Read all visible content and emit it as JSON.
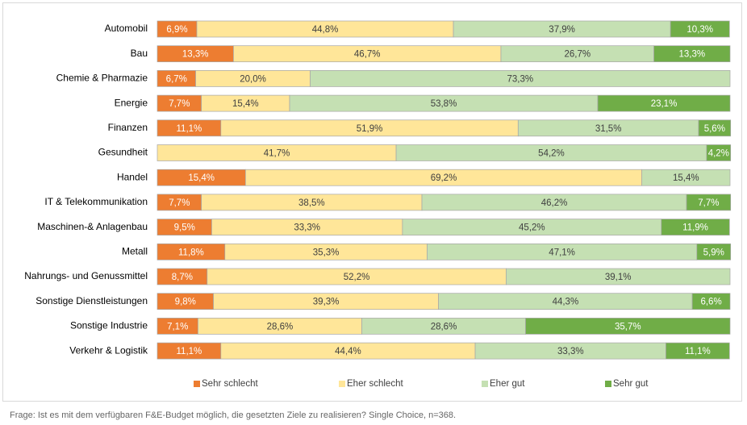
{
  "chart_data": {
    "type": "bar",
    "orientation": "horizontal",
    "stacked": true,
    "categories": [
      "Automobil",
      "Bau",
      "Chemie & Pharmazie",
      "Energie",
      "Finanzen",
      "Gesundheit",
      "Handel",
      "IT & Telekommunikation",
      "Maschinen-& Anlagenbau",
      "Metall",
      "Nahrungs- und Genussmittel",
      "Sonstige Dienstleistungen",
      "Sonstige Industrie",
      "Verkehr & Logistik"
    ],
    "xlim": [
      0,
      100
    ],
    "legend": "bottom",
    "series": [
      {
        "name": "Sehr schlecht",
        "color": "#ed7d31",
        "label_color": "#ffffff",
        "values": [
          6.9,
          13.3,
          6.7,
          7.7,
          11.1,
          null,
          15.4,
          7.7,
          9.5,
          11.8,
          8.7,
          9.8,
          7.1,
          11.1
        ],
        "value_labels": [
          "6,9%",
          "13,3%",
          "6,7%",
          "7,7%",
          "11,1%",
          null,
          "15,4%",
          "7,7%",
          "9,5%",
          "11,8%",
          "8,7%",
          "9,8%",
          "7,1%",
          "11,1%"
        ]
      },
      {
        "name": "Eher schlecht",
        "color": "#ffe699",
        "label_color": "#404040",
        "values": [
          44.8,
          46.7,
          20.0,
          15.4,
          51.9,
          41.7,
          69.2,
          38.5,
          33.3,
          35.3,
          52.2,
          39.3,
          28.6,
          44.4
        ],
        "value_labels": [
          "44,8%",
          "46,7%",
          "20,0%",
          "15,4%",
          "51,9%",
          "41,7%",
          "69,2%",
          "38,5%",
          "33,3%",
          "35,3%",
          "52,2%",
          "39,3%",
          "28,6%",
          "44,4%"
        ]
      },
      {
        "name": "Eher gut",
        "color": "#c5e0b3",
        "label_color": "#404040",
        "values": [
          37.9,
          26.7,
          73.3,
          53.8,
          31.5,
          54.2,
          15.4,
          46.2,
          45.2,
          47.1,
          39.1,
          44.3,
          28.6,
          33.3
        ],
        "value_labels": [
          "37,9%",
          "26,7%",
          "73,3%",
          "53,8%",
          "31,5%",
          "54,2%",
          "15,4%",
          "46,2%",
          "45,2%",
          "47,1%",
          "39,1%",
          "44,3%",
          "28,6%",
          "33,3%"
        ]
      },
      {
        "name": "Sehr gut",
        "color": "#70ad47",
        "label_color": "#ffffff",
        "values": [
          10.3,
          13.3,
          null,
          23.1,
          5.6,
          4.2,
          null,
          7.7,
          11.9,
          5.9,
          null,
          6.6,
          35.7,
          11.1
        ],
        "value_labels": [
          "10,3%",
          "13,3%",
          null,
          "23,1%",
          "5,6%",
          "4,2%",
          null,
          "7,7%",
          "11,9%",
          "5,9%",
          null,
          "6,6%",
          "35,7%",
          "11,1%"
        ]
      }
    ],
    "caption": "Frage: Ist es mit dem verfügbaren F&E-Budget möglich, die gesetzten Ziele zu realisieren? Single Choice, n=368."
  }
}
